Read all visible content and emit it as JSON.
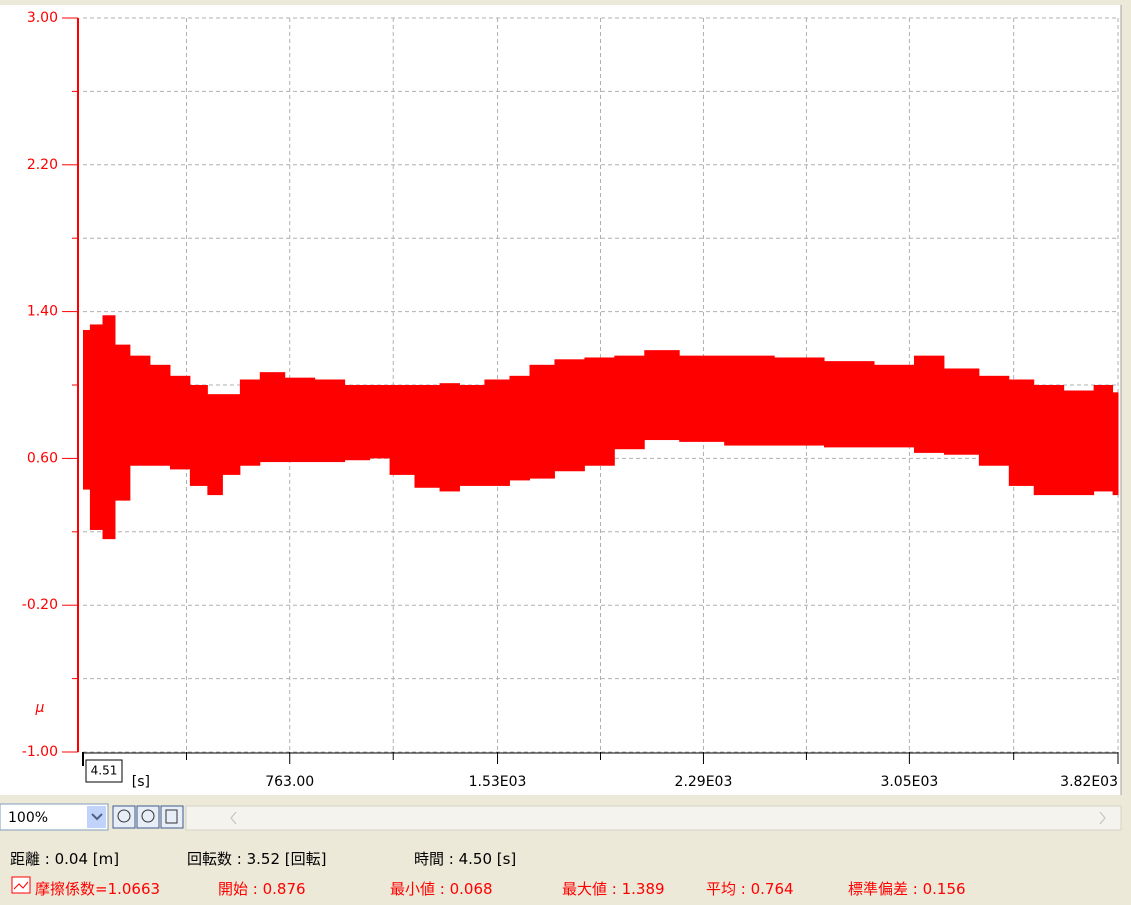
{
  "chart_data": {
    "type": "band",
    "color": "#ff0000",
    "y_label": "μ",
    "ylim": [
      -1,
      3
    ],
    "yticks": [
      {
        "value": -1,
        "label": "-1.00"
      },
      {
        "value": -0.2,
        "label": "-0.20"
      },
      {
        "value": 0.6,
        "label": "0.60"
      },
      {
        "value": 1.4,
        "label": "1.40"
      },
      {
        "value": 2.2,
        "label": "2.20"
      },
      {
        "value": 3,
        "label": "3.00"
      }
    ],
    "y_minor_ticks": [
      -0.6,
      0.2,
      1.0,
      1.8,
      2.6
    ],
    "xlim": [
      0,
      3820
    ],
    "xticks": [
      {
        "value": 763,
        "label": "763.00"
      },
      {
        "value": 1530,
        "label": "1.53E03"
      },
      {
        "value": 2290,
        "label": "2.29E03"
      },
      {
        "value": 3050,
        "label": "3.05E03"
      },
      {
        "value": 3820,
        "label": "3.82E03"
      }
    ],
    "x_minor_ticks": [
      382,
      1145,
      1910,
      2670,
      3435
    ],
    "x_unit": "[s]",
    "cursor_label": "4.51",
    "grid": true,
    "x": [
      7,
      44,
      100,
      136,
      210,
      284,
      358,
      431,
      487,
      542,
      616,
      689,
      800,
      910,
      1021,
      1095,
      1168,
      1279,
      1353,
      1426,
      1537,
      1611,
      1685,
      1795,
      1906,
      2016,
      2127,
      2274,
      2459,
      2643,
      2827,
      3012,
      3122,
      3233,
      3380,
      3454,
      3564,
      3675,
      3785,
      3815
    ],
    "max": [
      1.3,
      1.33,
      1.38,
      1.22,
      1.16,
      1.11,
      1.05,
      1.0,
      0.95,
      0.95,
      1.03,
      1.07,
      1.04,
      1.03,
      1.0,
      1.0,
      1.0,
      1.0,
      1.01,
      1.0,
      1.03,
      1.05,
      1.11,
      1.14,
      1.15,
      1.16,
      1.19,
      1.16,
      1.16,
      1.15,
      1.13,
      1.11,
      1.16,
      1.09,
      1.05,
      1.03,
      1.0,
      0.97,
      1.0,
      0.96
    ],
    "min": [
      0.43,
      0.21,
      0.16,
      0.37,
      0.56,
      0.56,
      0.54,
      0.45,
      0.4,
      0.51,
      0.56,
      0.58,
      0.58,
      0.58,
      0.59,
      0.6,
      0.51,
      0.44,
      0.42,
      0.45,
      0.45,
      0.48,
      0.49,
      0.53,
      0.56,
      0.65,
      0.7,
      0.69,
      0.67,
      0.67,
      0.66,
      0.66,
      0.63,
      0.62,
      0.56,
      0.45,
      0.4,
      0.4,
      0.42,
      0.4
    ]
  },
  "toolbar": {
    "zoom": "100%"
  },
  "status": {
    "line1": [
      "距離 : 0.04 [m]",
      "回転数 : 3.52 [回転]",
      "時間 : 4.50 [s]"
    ],
    "line2": [
      "摩擦係数=1.0663",
      "開始 : 0.876",
      "最小値 : 0.068",
      "最大値 : 1.389",
      "平均 : 0.764",
      "標準偏差 : 0.156"
    ]
  }
}
